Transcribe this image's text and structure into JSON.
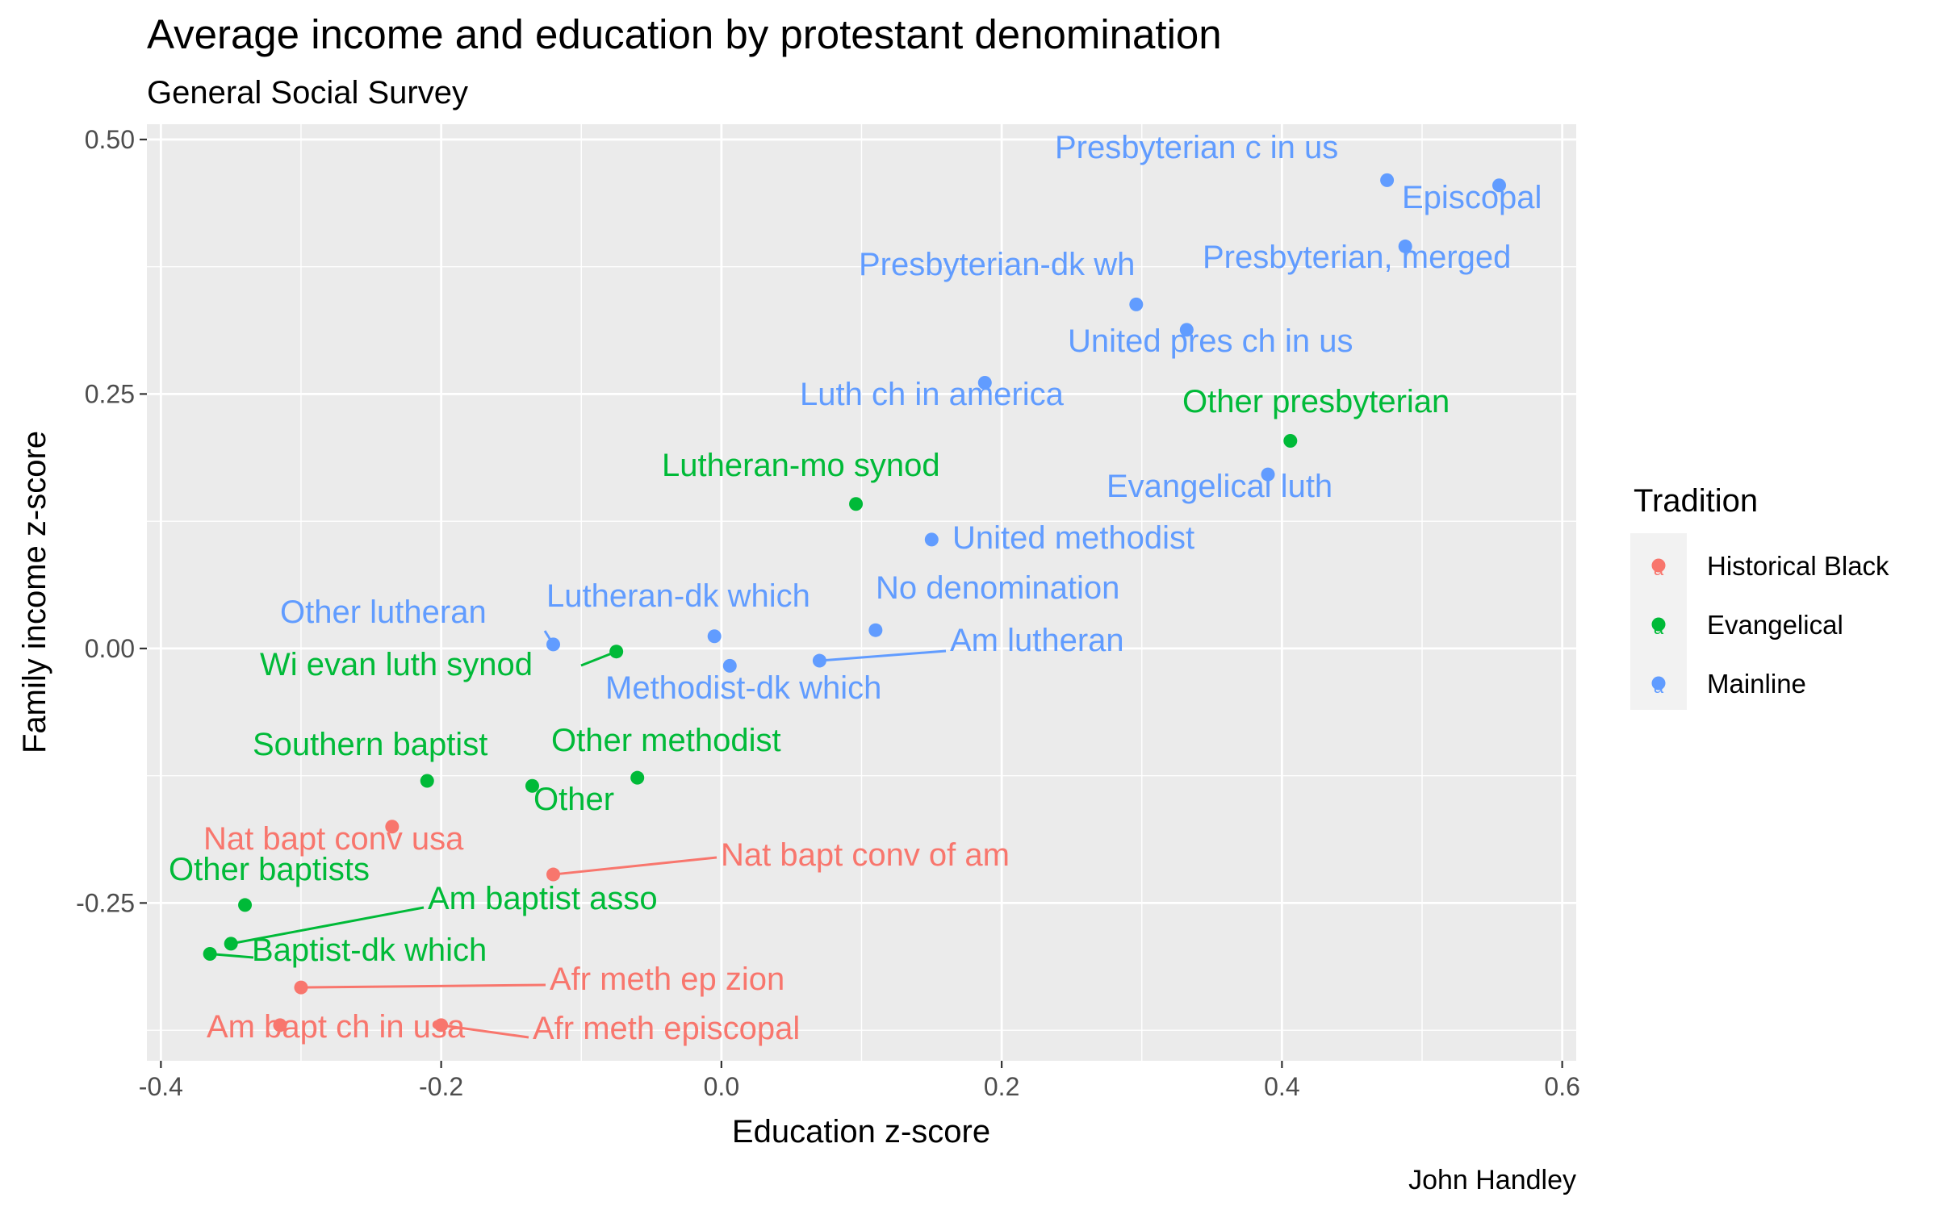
{
  "chart_data": {
    "type": "scatter",
    "title": "Average income and education by protestant denomination",
    "subtitle": "General Social Survey",
    "xlabel": "Education z-score",
    "ylabel": "Family income z-score",
    "caption": "John Handley",
    "xlim": [
      -0.41,
      0.61
    ],
    "ylim": [
      -0.405,
      0.515
    ],
    "x_ticks": [
      -0.4,
      -0.2,
      0.0,
      0.2,
      0.4,
      0.6
    ],
    "x_tick_labels": [
      "-0.4",
      "-0.2",
      "0.0",
      "0.2",
      "0.4",
      "0.6"
    ],
    "y_ticks": [
      -0.25,
      0.0,
      0.25,
      0.5
    ],
    "y_tick_labels": [
      "-0.25",
      "0.00",
      "0.25",
      "0.50"
    ],
    "grid": true,
    "legend": {
      "title": "Tradition",
      "position": "right",
      "entries": [
        {
          "name": "Historical Black",
          "color": "#F8766D"
        },
        {
          "name": "Evangelical",
          "color": "#00BA38"
        },
        {
          "name": "Mainline",
          "color": "#619CFF"
        }
      ]
    },
    "points": [
      {
        "label": "Presbyterian c in us",
        "tradition": "Mainline",
        "x": 0.475,
        "y": 0.46
      },
      {
        "label": "Episcopal",
        "tradition": "Mainline",
        "x": 0.555,
        "y": 0.455
      },
      {
        "label": "Presbyterian, merged",
        "tradition": "Mainline",
        "x": 0.488,
        "y": 0.395
      },
      {
        "label": "Presbyterian-dk wh",
        "tradition": "Mainline",
        "x": 0.296,
        "y": 0.338
      },
      {
        "label": "United pres ch in us",
        "tradition": "Mainline",
        "x": 0.332,
        "y": 0.313
      },
      {
        "label": "Luth ch in america",
        "tradition": "Mainline",
        "x": 0.188,
        "y": 0.261
      },
      {
        "label": "Other presbyterian",
        "tradition": "Evangelical",
        "x": 0.406,
        "y": 0.204
      },
      {
        "label": "Evangelical luth",
        "tradition": "Mainline",
        "x": 0.39,
        "y": 0.171
      },
      {
        "label": "Lutheran-mo synod",
        "tradition": "Evangelical",
        "x": 0.096,
        "y": 0.142
      },
      {
        "label": "United methodist",
        "tradition": "Mainline",
        "x": 0.15,
        "y": 0.107
      },
      {
        "label": "No denomination",
        "tradition": "Mainline",
        "x": 0.11,
        "y": 0.018
      },
      {
        "label": "Lutheran-dk which",
        "tradition": "Mainline",
        "x": -0.005,
        "y": 0.012
      },
      {
        "label": "Other lutheran",
        "tradition": "Mainline",
        "x": -0.12,
        "y": 0.004
      },
      {
        "label": "Wi evan luth synod",
        "tradition": "Evangelical",
        "x": -0.075,
        "y": -0.003
      },
      {
        "label": "Methodist-dk which",
        "tradition": "Mainline",
        "x": 0.006,
        "y": -0.017
      },
      {
        "label": "Am lutheran",
        "tradition": "Mainline",
        "x": 0.07,
        "y": -0.012
      },
      {
        "label": "Southern baptist",
        "tradition": "Evangelical",
        "x": -0.21,
        "y": -0.13
      },
      {
        "label": "Other",
        "tradition": "Evangelical",
        "x": -0.135,
        "y": -0.135
      },
      {
        "label": "Other methodist",
        "tradition": "Evangelical",
        "x": -0.06,
        "y": -0.127
      },
      {
        "label": "Nat bapt conv usa",
        "tradition": "Historical Black",
        "x": -0.235,
        "y": -0.175
      },
      {
        "label": "Nat bapt conv of am",
        "tradition": "Historical Black",
        "x": -0.12,
        "y": -0.222
      },
      {
        "label": "Other baptists",
        "tradition": "Evangelical",
        "x": -0.34,
        "y": -0.252
      },
      {
        "label": "Am baptist asso",
        "tradition": "Evangelical",
        "x": -0.35,
        "y": -0.29
      },
      {
        "label": "Baptist-dk which",
        "tradition": "Evangelical",
        "x": -0.365,
        "y": -0.3
      },
      {
        "label": "Afr meth ep zion",
        "tradition": "Historical Black",
        "x": -0.3,
        "y": -0.333
      },
      {
        "label": "Am bapt ch in usa",
        "tradition": "Historical Black",
        "x": -0.315,
        "y": -0.37
      },
      {
        "label": "Afr meth episcopal",
        "tradition": "Historical Black",
        "x": -0.2,
        "y": -0.37
      }
    ]
  }
}
